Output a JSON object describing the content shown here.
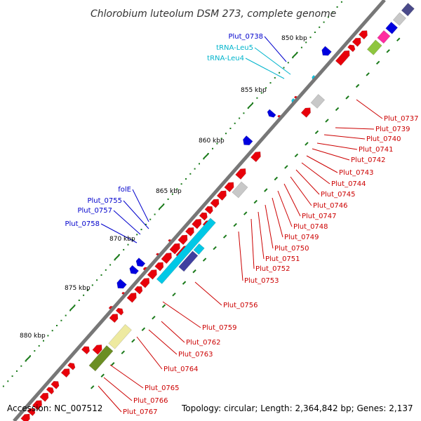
{
  "title": "Chlorobium luteolum DSM 273, complete genome",
  "accession_text": "Accession: NC_007512",
  "topology_text": "Topology: circular; Length: 2,364,842 bp; Genes: 2,137",
  "ruler_labels": [
    "850 kbp",
    "855 kbp",
    "860 kbp",
    "865 kbp",
    "870 kbp",
    "875 kbp",
    "880 kbp"
  ],
  "gene_labels_blue": [
    "Plut_0738",
    "folE",
    "Plut_0755",
    "Plut_0757",
    "Plut_0758"
  ],
  "gene_labels_cyan": [
    "tRNA-Leu5",
    "tRNA-Leu4"
  ],
  "gene_labels_red": [
    "Plut_0737",
    "Plut_0739",
    "Plut_0740",
    "Plut_0741",
    "Plut_0742",
    "Plut_0743",
    "Plut_0744",
    "Plut_0745",
    "Plut_0746",
    "Plut_0747",
    "Plut_0748",
    "Plut_0749",
    "Plut_0750",
    "Plut_0751",
    "Plut_0752",
    "Plut_0753",
    "Plut_0756",
    "Plut_0759",
    "Plut_0762",
    "Plut_0763",
    "Plut_0764",
    "Plut_0765",
    "Plut_0766",
    "Plut_0767"
  ],
  "colors": {
    "forward_gene": "#e8000a",
    "reverse_gene": "#0000e0",
    "rna_gene": "#00c8e6",
    "backbone": "#777777",
    "tick": "#1a7a1a",
    "label_red": "#cc0000",
    "label_blue": "#0000cc",
    "label_cyan": "#00b4cc"
  }
}
